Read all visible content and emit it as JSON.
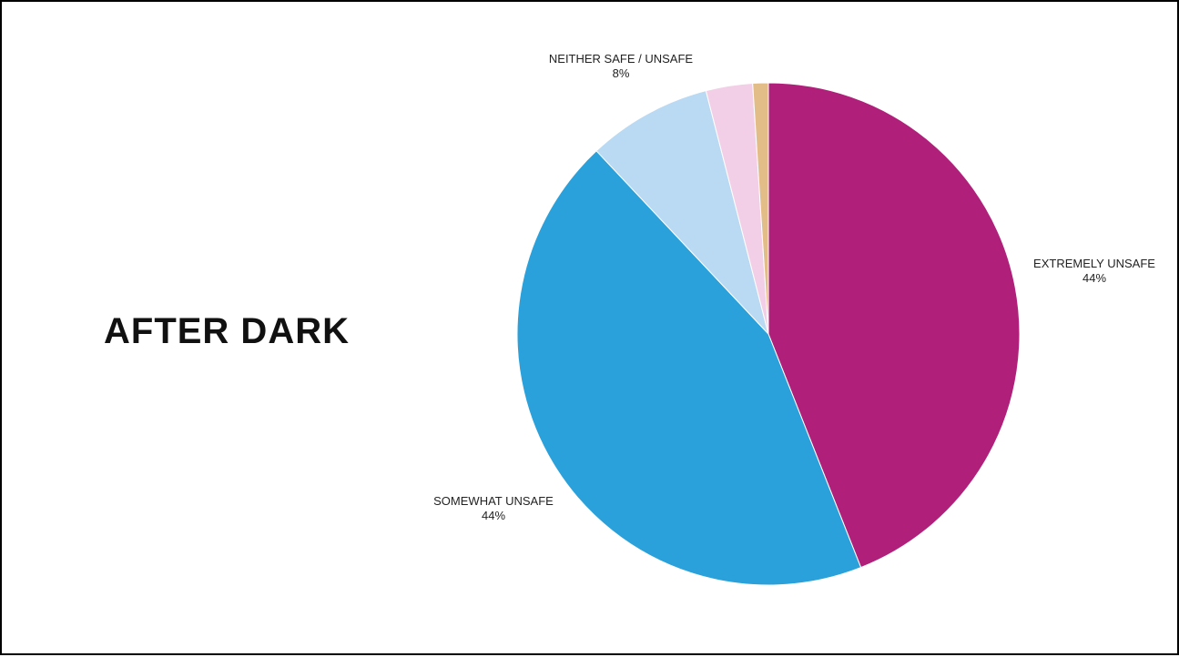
{
  "slide": {
    "title": "AFTER DARK"
  },
  "chart_data": {
    "type": "pie",
    "title": "AFTER DARK",
    "start_angle_deg": 0,
    "direction": "clockwise",
    "slices": [
      {
        "label": "EXTREMELY UNSAFE",
        "value": 44,
        "value_label": "44%",
        "color": "#b01f7a",
        "labeled": true
      },
      {
        "label": "SOMEWHAT UNSAFE",
        "value": 44,
        "value_label": "44%",
        "color": "#2aa1da",
        "labeled": true
      },
      {
        "label": "NEITHER SAFE / UNSAFE",
        "value": 8,
        "value_label": "8%",
        "color": "#bad9f2",
        "labeled": true
      },
      {
        "label": "",
        "value": 3,
        "value_label": "",
        "color": "#f2cfe6",
        "labeled": false
      },
      {
        "label": "",
        "value": 1,
        "value_label": "",
        "color": "#e3bd87",
        "labeled": false
      }
    ]
  }
}
